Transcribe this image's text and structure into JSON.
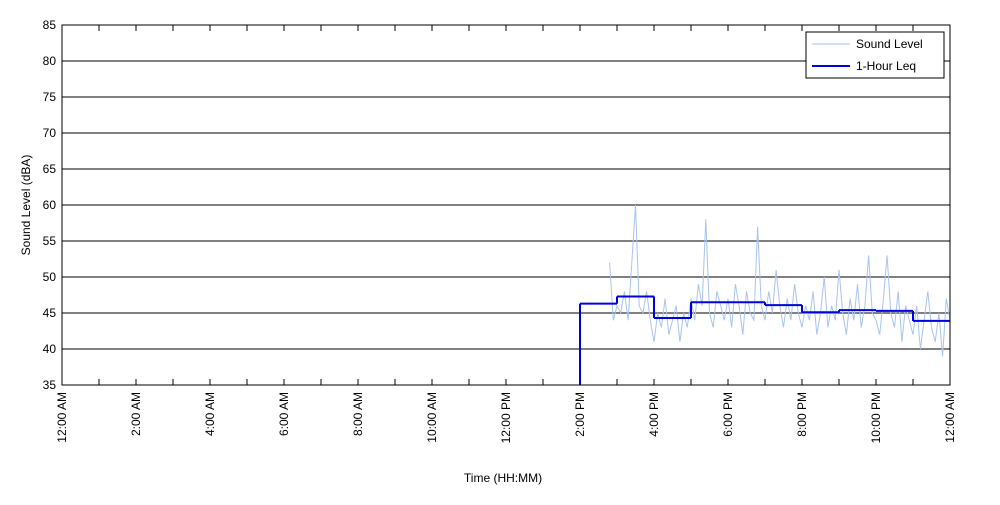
{
  "chart_data": {
    "type": "line",
    "xlabel": "Time (HH:MM)",
    "ylabel": "Sound Level (dBA)",
    "xlim": [
      0,
      24
    ],
    "ylim": [
      35,
      85
    ],
    "yticks": [
      35,
      40,
      45,
      50,
      55,
      60,
      65,
      70,
      75,
      80,
      85
    ],
    "xticks": [
      {
        "value": 0,
        "label": "12:00 AM"
      },
      {
        "value": 2,
        "label": "2:00 AM"
      },
      {
        "value": 4,
        "label": "4:00 AM"
      },
      {
        "value": 6,
        "label": "6:00 AM"
      },
      {
        "value": 8,
        "label": "8:00 AM"
      },
      {
        "value": 10,
        "label": "10:00 AM"
      },
      {
        "value": 12,
        "label": "12:00 PM"
      },
      {
        "value": 14,
        "label": "2:00 PM"
      },
      {
        "value": 16,
        "label": "4:00 PM"
      },
      {
        "value": 18,
        "label": "6:00 PM"
      },
      {
        "value": 20,
        "label": "8:00 PM"
      },
      {
        "value": 22,
        "label": "10:00 PM"
      },
      {
        "value": 24,
        "label": "12:00 AM"
      }
    ],
    "xminorticks": [
      1,
      3,
      5,
      7,
      9,
      11,
      13,
      15,
      17,
      19,
      21,
      23
    ],
    "grid": true,
    "legend": "upper right",
    "series": [
      {
        "name": "Sound Level",
        "color": "#a8c4f0",
        "style": "line",
        "x": [
          14.8,
          14.9,
          15,
          15.1,
          15.2,
          15.3,
          15.4,
          15.5,
          15.6,
          15.7,
          15.8,
          15.9,
          16,
          16.1,
          16.2,
          16.3,
          16.4,
          16.5,
          16.6,
          16.7,
          16.8,
          16.9,
          17,
          17.1,
          17.2,
          17.3,
          17.4,
          17.5,
          17.6,
          17.7,
          17.8,
          17.9,
          18,
          18.1,
          18.2,
          18.3,
          18.4,
          18.5,
          18.6,
          18.7,
          18.8,
          18.9,
          19,
          19.1,
          19.2,
          19.3,
          19.4,
          19.5,
          19.6,
          19.7,
          19.8,
          19.9,
          20,
          20.1,
          20.2,
          20.3,
          20.4,
          20.5,
          20.6,
          20.7,
          20.8,
          20.9,
          21,
          21.1,
          21.2,
          21.3,
          21.4,
          21.5,
          21.6,
          21.7,
          21.8,
          21.9,
          22,
          22.1,
          22.2,
          22.3,
          22.4,
          22.5,
          22.6,
          22.7,
          22.8,
          22.9,
          23,
          23.1,
          23.2,
          23.3,
          23.4,
          23.5,
          23.6,
          23.7,
          23.8,
          23.9,
          24
        ],
        "values": [
          52,
          44,
          46,
          45,
          48,
          44,
          52,
          60,
          46,
          45,
          48,
          44,
          41,
          45,
          43,
          47,
          42,
          44,
          46,
          41,
          45,
          43,
          47,
          44,
          49,
          46,
          58,
          45,
          43,
          48,
          46,
          44,
          47,
          43,
          49,
          46,
          42,
          48,
          45,
          44,
          57,
          46,
          44,
          48,
          45,
          51,
          46,
          43,
          47,
          44,
          49,
          45,
          43,
          46,
          44,
          48,
          42,
          45,
          50,
          43,
          46,
          44,
          51,
          45,
          42,
          47,
          44,
          49,
          43,
          46,
          53,
          45,
          44,
          42,
          47,
          53,
          45,
          43,
          48,
          41,
          46,
          44,
          42,
          46,
          40,
          44,
          48,
          43,
          41,
          45,
          39,
          47,
          44
        ]
      },
      {
        "name": "1-Hour Leq",
        "color": "#0000dd",
        "style": "step",
        "x": [
          14,
          15,
          16,
          17,
          18,
          19,
          20,
          21,
          22,
          23
        ],
        "values": [
          46.3,
          47.3,
          44.3,
          46.5,
          46.5,
          46.1,
          45.1,
          45.4,
          45.3,
          43.9
        ]
      }
    ]
  }
}
